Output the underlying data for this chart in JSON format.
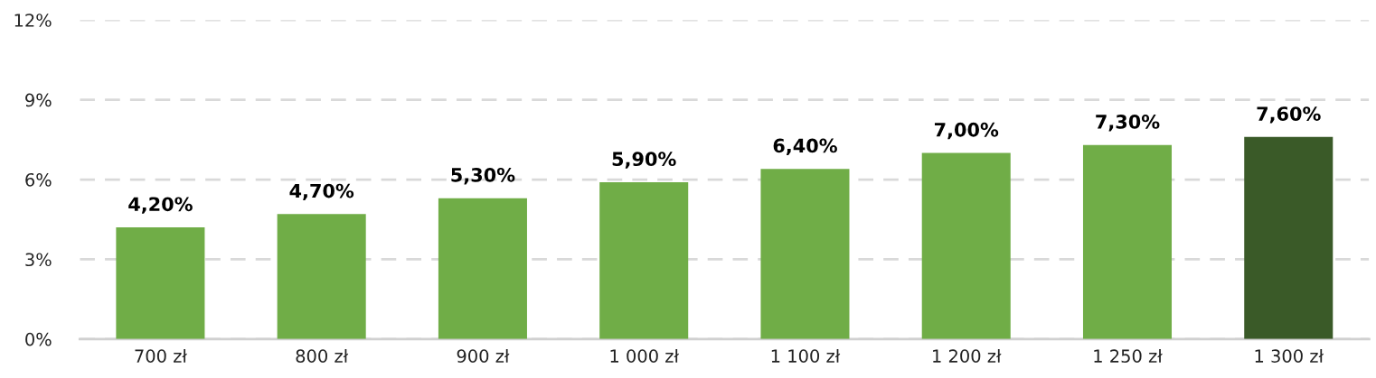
{
  "chart_data": {
    "type": "bar",
    "categories": [
      "700 zł",
      "800 zł",
      "900 zł",
      "1 000 zł",
      "1 100 zł",
      "1 200 zł",
      "1 250 zł",
      "1 300 zł"
    ],
    "values": [
      4.2,
      4.7,
      5.3,
      5.9,
      6.4,
      7.0,
      7.3,
      7.6
    ],
    "colors": [
      "#70ad47",
      "#70ad47",
      "#70ad47",
      "#70ad47",
      "#70ad47",
      "#70ad47",
      "#70ad47",
      "#3a5a28"
    ],
    "value_labels": [
      "4,20%",
      "4,70%",
      "5,30%",
      "5,90%",
      "6,40%",
      "7,00%",
      "7,30%",
      "7,60%"
    ],
    "ylim": [
      0,
      12
    ],
    "yticks": [
      {
        "value": 0,
        "label": "0%"
      },
      {
        "value": 3,
        "label": "3%"
      },
      {
        "value": 6,
        "label": "6%"
      },
      {
        "value": 9,
        "label": "9%"
      },
      {
        "value": 12,
        "label": "12%"
      }
    ],
    "grid": "y",
    "legend": false
  }
}
